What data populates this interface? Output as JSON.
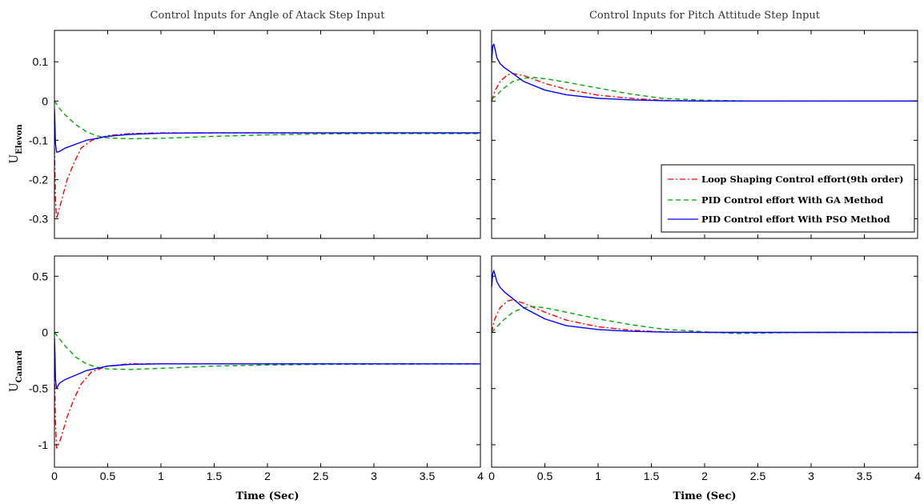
{
  "chart_data": [
    {
      "type": "line",
      "title": "Control Inputs for Angle of Atack Step Input",
      "xlabel": "",
      "ylabel": "U",
      "ylabel_sub": "Elevon",
      "xlim": [
        0,
        4
      ],
      "ylim": [
        -0.35,
        0.18
      ],
      "xticks": [
        "0",
        "0.5",
        "1",
        "1.5",
        "2",
        "2.5",
        "3",
        "3.5",
        "4"
      ],
      "xtick_values": [
        0,
        0.5,
        1,
        1.5,
        2,
        2.5,
        3,
        3.5,
        4
      ],
      "yticks": [
        "-0.3",
        "-0.2",
        "-0.1",
        "0",
        "0.1"
      ],
      "ytick_values": [
        -0.3,
        -0.2,
        -0.1,
        0,
        0.1
      ],
      "grid": false,
      "series": [
        {
          "name": "Loop Shaping Control effort(9th order)",
          "color": "#ff0000",
          "dash": "dashdot",
          "x": [
            0,
            0.01,
            0.02,
            0.03,
            0.05,
            0.08,
            0.12,
            0.18,
            0.25,
            0.35,
            0.5,
            0.7,
            1,
            1.5,
            2,
            3,
            4
          ],
          "y": [
            -0.12,
            -0.25,
            -0.3,
            -0.29,
            -0.27,
            -0.24,
            -0.2,
            -0.16,
            -0.12,
            -0.1,
            -0.088,
            -0.083,
            -0.081,
            -0.081,
            -0.081,
            -0.081,
            -0.081
          ]
        },
        {
          "name": "PID Control effort With GA Method",
          "color": "#00aa00",
          "dash": "dashed",
          "x": [
            0,
            0.05,
            0.1,
            0.2,
            0.3,
            0.4,
            0.5,
            0.7,
            1,
            1.5,
            2,
            2.5,
            3,
            3.5,
            4
          ],
          "y": [
            0,
            -0.02,
            -0.035,
            -0.06,
            -0.078,
            -0.089,
            -0.094,
            -0.096,
            -0.095,
            -0.09,
            -0.086,
            -0.084,
            -0.083,
            -0.083,
            -0.083
          ]
        },
        {
          "name": "PID Control effort With PSO Method",
          "color": "#0000ff",
          "dash": "solid",
          "x": [
            0,
            0.005,
            0.01,
            0.02,
            0.03,
            0.05,
            0.1,
            0.2,
            0.3,
            0.5,
            0.7,
            1,
            1.5,
            2,
            3,
            4
          ],
          "y": [
            -0.02,
            -0.06,
            -0.11,
            -0.13,
            -0.13,
            -0.128,
            -0.12,
            -0.11,
            -0.1,
            -0.09,
            -0.085,
            -0.082,
            -0.081,
            -0.081,
            -0.081,
            -0.081
          ]
        }
      ]
    },
    {
      "type": "line",
      "title": "Control Inputs for Pitch Attitude Step Input",
      "xlabel": "",
      "ylabel": "",
      "xlim": [
        0,
        4
      ],
      "ylim": [
        -0.35,
        0.18
      ],
      "xticks": [
        "0",
        "0.5",
        "1",
        "1.5",
        "2",
        "2.5",
        "3",
        "3.5",
        "4"
      ],
      "xtick_values": [
        0,
        0.5,
        1,
        1.5,
        2,
        2.5,
        3,
        3.5,
        4
      ],
      "yticks": [],
      "ytick_values": [],
      "grid": false,
      "legend_position": "bottom-right",
      "series": [
        {
          "name": "Loop Shaping Control effort(9th order)",
          "color": "#ff0000",
          "dash": "dashdot",
          "x": [
            0,
            0.03,
            0.08,
            0.15,
            0.2,
            0.3,
            0.5,
            0.7,
            1,
            1.3,
            1.6,
            2,
            2.5,
            3,
            4
          ],
          "y": [
            0,
            0.025,
            0.05,
            0.067,
            0.07,
            0.065,
            0.045,
            0.03,
            0.015,
            0.007,
            0.002,
            0,
            0,
            0,
            0
          ]
        },
        {
          "name": "PID Control effort With GA Method",
          "color": "#00aa00",
          "dash": "dashed",
          "x": [
            0,
            0.05,
            0.1,
            0.2,
            0.3,
            0.4,
            0.5,
            0.7,
            1,
            1.3,
            1.6,
            2,
            2.5,
            3,
            4
          ],
          "y": [
            0.005,
            0.015,
            0.03,
            0.05,
            0.058,
            0.06,
            0.057,
            0.048,
            0.033,
            0.018,
            0.007,
            0.002,
            0,
            0,
            0
          ]
        },
        {
          "name": "PID Control effort With PSO Method",
          "color": "#0000ff",
          "dash": "solid",
          "x": [
            0,
            0.01,
            0.02,
            0.03,
            0.05,
            0.08,
            0.12,
            0.2,
            0.3,
            0.5,
            0.7,
            1,
            1.3,
            1.6,
            2,
            2.5,
            3,
            4
          ],
          "y": [
            0.1,
            0.14,
            0.145,
            0.135,
            0.11,
            0.095,
            0.085,
            0.07,
            0.05,
            0.028,
            0.016,
            0.007,
            0.003,
            0.001,
            0,
            0,
            0,
            0
          ]
        }
      ]
    },
    {
      "type": "line",
      "title": "",
      "xlabel": "Time (Sec)",
      "ylabel": "U",
      "ylabel_sub": "Canard",
      "xlim": [
        0,
        4
      ],
      "ylim": [
        -1.2,
        0.68
      ],
      "xticks": [
        "0",
        "0.5",
        "1",
        "1.5",
        "2",
        "2.5",
        "3",
        "3.5",
        "4"
      ],
      "xtick_values": [
        0,
        0.5,
        1,
        1.5,
        2,
        2.5,
        3,
        3.5,
        4
      ],
      "yticks": [
        "-1",
        "-0.5",
        "0",
        "0.5"
      ],
      "ytick_values": [
        -1,
        -0.5,
        0,
        0.5
      ],
      "grid": false,
      "series": [
        {
          "name": "Loop Shaping Control effort(9th order)",
          "color": "#ff0000",
          "dash": "dashdot",
          "x": [
            0,
            0.01,
            0.02,
            0.03,
            0.05,
            0.08,
            0.12,
            0.18,
            0.25,
            0.35,
            0.5,
            0.7,
            1,
            1.5,
            2,
            3,
            4
          ],
          "y": [
            -0.35,
            -0.8,
            -1.03,
            -1.02,
            -0.97,
            -0.88,
            -0.75,
            -0.6,
            -0.46,
            -0.35,
            -0.3,
            -0.28,
            -0.28,
            -0.28,
            -0.28,
            -0.28,
            -0.28
          ]
        },
        {
          "name": "PID Control effort With GA Method",
          "color": "#00aa00",
          "dash": "dashed",
          "x": [
            0,
            0.05,
            0.1,
            0.2,
            0.3,
            0.4,
            0.5,
            0.7,
            1,
            1.5,
            2,
            2.5,
            3,
            3.5,
            4
          ],
          "y": [
            0,
            -0.06,
            -0.12,
            -0.22,
            -0.28,
            -0.31,
            -0.325,
            -0.33,
            -0.32,
            -0.3,
            -0.29,
            -0.285,
            -0.283,
            -0.282,
            -0.282
          ]
        },
        {
          "name": "PID Control effort With PSO Method",
          "color": "#0000ff",
          "dash": "solid",
          "x": [
            0,
            0.005,
            0.01,
            0.02,
            0.03,
            0.05,
            0.1,
            0.2,
            0.3,
            0.5,
            0.7,
            1,
            1.5,
            2,
            3,
            4
          ],
          "y": [
            -0.05,
            -0.2,
            -0.42,
            -0.5,
            -0.48,
            -0.45,
            -0.42,
            -0.38,
            -0.34,
            -0.3,
            -0.285,
            -0.28,
            -0.28,
            -0.28,
            -0.28,
            -0.28
          ]
        }
      ]
    },
    {
      "type": "line",
      "title": "",
      "xlabel": "Time (Sec)",
      "ylabel": "",
      "xlim": [
        0,
        4
      ],
      "ylim": [
        -1.2,
        0.68
      ],
      "xticks": [
        "0",
        "0.5",
        "1",
        "1.5",
        "2",
        "2.5",
        "3",
        "3.5",
        "4"
      ],
      "xtick_values": [
        0,
        0.5,
        1,
        1.5,
        2,
        2.5,
        3,
        3.5,
        4
      ],
      "yticks": [],
      "ytick_values": [],
      "grid": false,
      "series": [
        {
          "name": "Loop Shaping Control effort(9th order)",
          "color": "#ff0000",
          "dash": "dashdot",
          "x": [
            0,
            0.03,
            0.08,
            0.15,
            0.2,
            0.3,
            0.5,
            0.7,
            1,
            1.3,
            1.6,
            2,
            2.5,
            3,
            4
          ],
          "y": [
            0,
            0.12,
            0.22,
            0.28,
            0.29,
            0.26,
            0.18,
            0.11,
            0.05,
            0.02,
            0.005,
            0,
            0,
            0,
            0
          ]
        },
        {
          "name": "PID Control effort With GA Method",
          "color": "#00aa00",
          "dash": "dashed",
          "x": [
            0,
            0.05,
            0.1,
            0.2,
            0.3,
            0.4,
            0.5,
            0.7,
            1,
            1.3,
            1.6,
            2,
            2.3,
            2.6,
            3,
            4
          ],
          "y": [
            0,
            0.05,
            0.1,
            0.18,
            0.22,
            0.23,
            0.22,
            0.18,
            0.12,
            0.07,
            0.03,
            0.005,
            -0.01,
            -0.005,
            0,
            0
          ]
        },
        {
          "name": "PID Control effort With PSO Method",
          "color": "#0000ff",
          "dash": "solid",
          "x": [
            0,
            0.01,
            0.02,
            0.03,
            0.05,
            0.08,
            0.12,
            0.2,
            0.3,
            0.5,
            0.7,
            1,
            1.3,
            1.6,
            2,
            3,
            4
          ],
          "y": [
            0.4,
            0.52,
            0.55,
            0.52,
            0.45,
            0.4,
            0.36,
            0.3,
            0.22,
            0.12,
            0.06,
            0.025,
            0.01,
            0.003,
            0,
            0,
            0
          ]
        }
      ]
    }
  ],
  "legend": {
    "entries": [
      "Loop Shaping Control effort(9th order)",
      "PID Control effort With GA Method",
      "PID Control effort With PSO Method"
    ]
  }
}
